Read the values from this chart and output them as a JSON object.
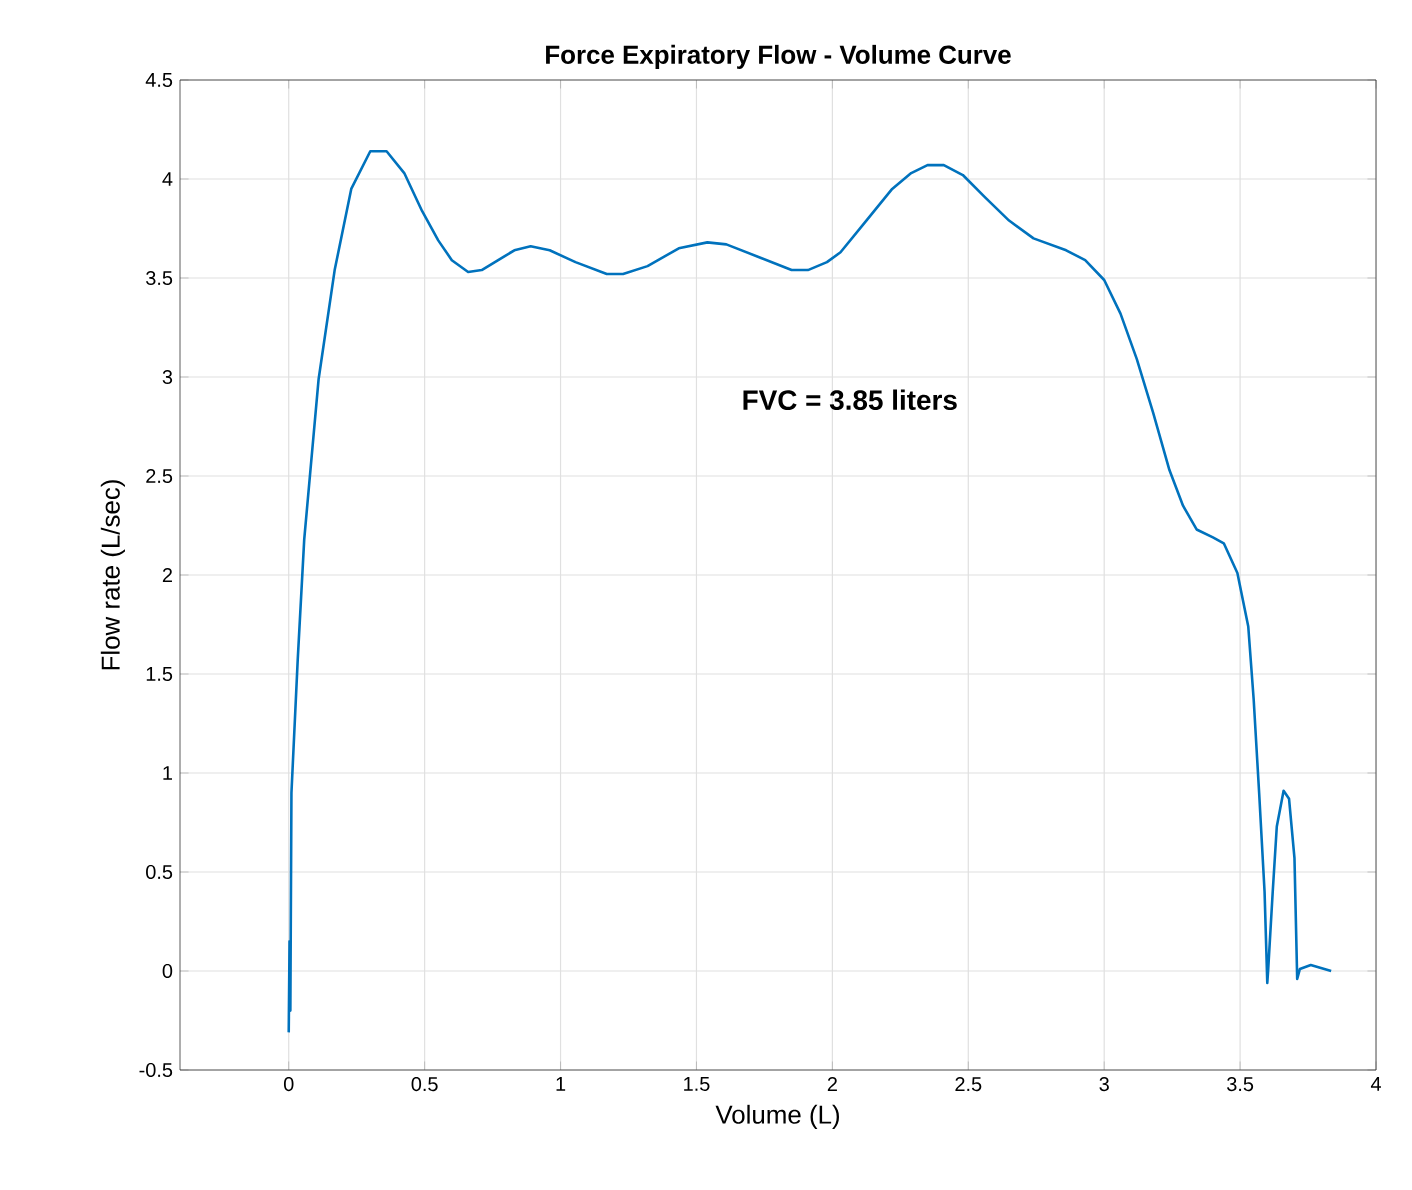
{
  "chart_data": {
    "type": "line",
    "title": "Force Expiratory Flow - Volume Curve",
    "xlabel": "Volume (L)",
    "ylabel": "Flow rate (L/sec)",
    "annotations": [
      "FVC = 3.85 liters"
    ],
    "xlim": [
      -0.4,
      4
    ],
    "xticks": [
      0,
      0.5,
      1,
      1.5,
      2,
      2.5,
      3,
      3.5,
      4
    ],
    "ylim": [
      -0.5,
      4.5
    ],
    "yticks": [
      -0.5,
      0,
      0.5,
      1,
      1.5,
      2,
      2.5,
      3,
      3.5,
      4,
      4.5
    ],
    "grid": true,
    "marker": "none",
    "line_style": "solid",
    "series": [
      {
        "color": "#0072bd",
        "x": [
          0,
          0.003,
          0.006,
          0.01,
          0.033,
          0.057,
          0.11,
          0.169,
          0.23,
          0.3,
          0.36,
          0.425,
          0.49,
          0.55,
          0.6,
          0.66,
          0.71,
          0.83,
          0.89,
          0.96,
          1.055,
          1.17,
          1.23,
          1.32,
          1.435,
          1.54,
          1.61,
          1.74,
          1.85,
          1.91,
          1.98,
          2.03,
          2.125,
          2.22,
          2.29,
          2.35,
          2.41,
          2.48,
          2.56,
          2.65,
          2.74,
          2.86,
          2.93,
          3.0,
          3.06,
          3.12,
          3.18,
          3.24,
          3.29,
          3.34,
          3.4,
          3.44,
          3.49,
          3.53,
          3.55,
          3.57,
          3.59,
          3.6,
          3.603,
          3.62,
          3.635,
          3.66,
          3.68,
          3.7,
          3.71,
          3.72,
          3.76,
          3.835
        ],
        "values": [
          -0.31,
          0.15,
          -0.2,
          0.9,
          1.57,
          2.18,
          2.99,
          3.54,
          3.95,
          4.14,
          4.14,
          4.03,
          3.84,
          3.69,
          3.59,
          3.53,
          3.54,
          3.64,
          3.66,
          3.64,
          3.58,
          3.52,
          3.52,
          3.56,
          3.65,
          3.68,
          3.67,
          3.6,
          3.54,
          3.54,
          3.58,
          3.63,
          3.79,
          3.95,
          4.03,
          4.07,
          4.07,
          4.02,
          3.91,
          3.79,
          3.7,
          3.64,
          3.59,
          3.49,
          3.32,
          3.09,
          2.82,
          2.53,
          2.35,
          2.23,
          2.19,
          2.16,
          2.01,
          1.74,
          1.37,
          0.9,
          0.4,
          -0.06,
          0.0,
          0.4,
          0.73,
          0.91,
          0.87,
          0.57,
          -0.04,
          0.01,
          0.03,
          0.0
        ]
      }
    ]
  }
}
